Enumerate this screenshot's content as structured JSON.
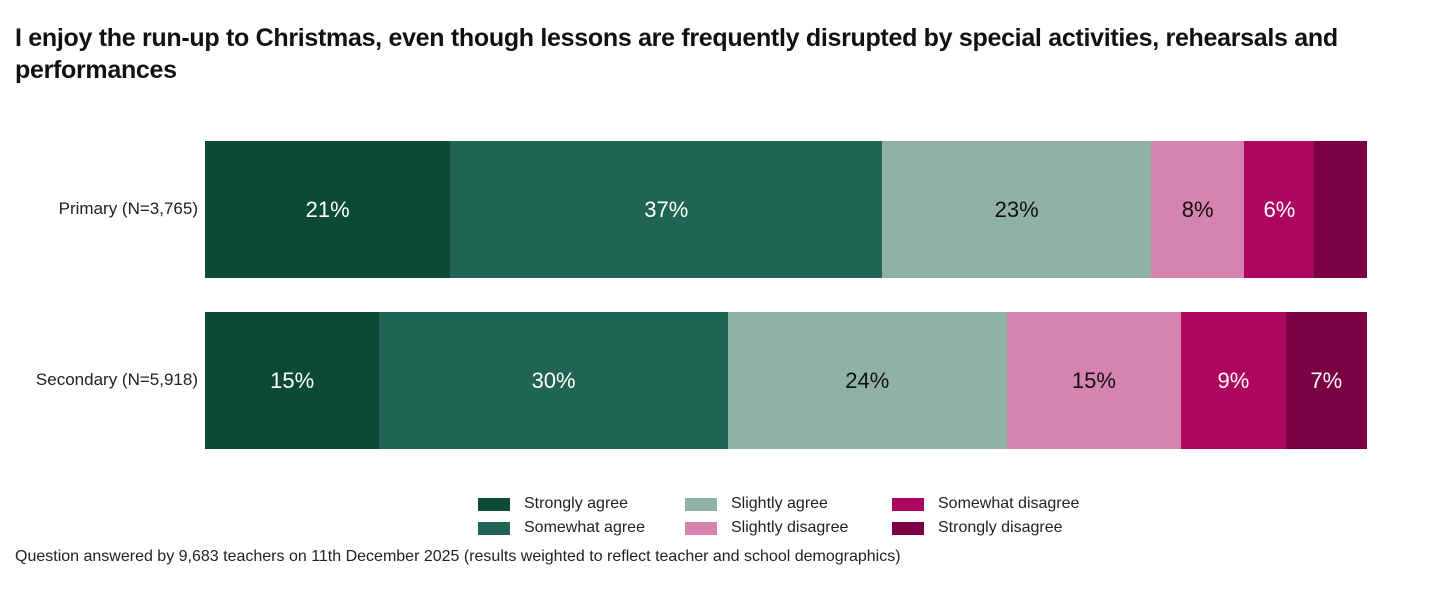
{
  "chart_data": {
    "type": "bar",
    "orientation": "horizontal-stacked-100",
    "title": "I enjoy the run-up to Christmas, even though lessons are frequently disrupted by special activities, rehearsals and performances",
    "categories": [
      "Primary (N=3,765)",
      "Secondary (N=5,918)"
    ],
    "series": [
      {
        "name": "Strongly agree",
        "color": "#0b4a37",
        "text_color": "#ffffff",
        "values": [
          21,
          15
        ],
        "labels": [
          "21%",
          "15%"
        ]
      },
      {
        "name": "Somewhat agree",
        "color": "#206551",
        "text_color": "#ffffff",
        "values": [
          37,
          30
        ],
        "labels": [
          "37%",
          "30%"
        ]
      },
      {
        "name": "Slightly agree",
        "color": "#8fb1a6",
        "text_color": "#111111",
        "values": [
          23,
          24
        ],
        "labels": [
          "23%",
          "24%"
        ]
      },
      {
        "name": "Slightly disagree",
        "color": "#d683b0",
        "text_color": "#111111",
        "values": [
          8,
          15
        ],
        "labels": [
          "8%",
          "15%"
        ]
      },
      {
        "name": "Somewhat disagree",
        "color": "#ad0660",
        "text_color": "#ffffff",
        "values": [
          6,
          9
        ],
        "labels": [
          "6%",
          "9%"
        ]
      },
      {
        "name": "Strongly disagree",
        "color": "#7a0043",
        "text_color": "#ffffff",
        "values": [
          4.5,
          7
        ],
        "labels": [
          "",
          "7%"
        ]
      }
    ],
    "xlim": [
      0,
      100
    ],
    "grid": false,
    "legend_placement": "bottom-center",
    "legend_order": [
      "Strongly agree",
      "Somewhat agree",
      "Slightly agree",
      "Slightly disagree",
      "Somewhat disagree",
      "Strongly disagree"
    ]
  },
  "footnote": "Question answered by 9,683 teachers on 11th December 2025 (results weighted to reflect teacher and school demographics)"
}
